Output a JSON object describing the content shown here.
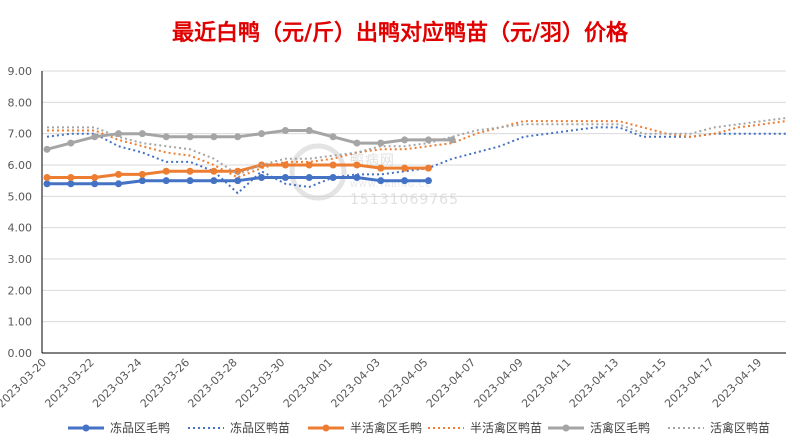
{
  "chart_data": {
    "type": "line",
    "title": "最近白鸭（元/斤）出鸭对应鸭苗（元/羽）价格",
    "ylim": [
      0,
      9
    ],
    "yticks": [
      "0.00",
      "1.00",
      "2.00",
      "3.00",
      "4.00",
      "5.00",
      "6.00",
      "7.00",
      "8.00",
      "9.00"
    ],
    "x": [
      "2023-03-20",
      "2023-03-21",
      "2023-03-22",
      "2023-03-23",
      "2023-03-24",
      "2023-03-25",
      "2023-03-26",
      "2023-03-27",
      "2023-03-28",
      "2023-03-29",
      "2023-03-30",
      "2023-03-31",
      "2023-04-01",
      "2023-04-02",
      "2023-04-03",
      "2023-04-04",
      "2023-04-05",
      "2023-04-06",
      "2023-04-07",
      "2023-04-08",
      "2023-04-09",
      "2023-04-10",
      "2023-04-11",
      "2023-04-12",
      "2023-04-13",
      "2023-04-14",
      "2023-04-15",
      "2023-04-16",
      "2023-04-17",
      "2023-04-18",
      "2023-04-19",
      "2023-04-20"
    ],
    "xticks": [
      "2023-03-20",
      "2023-03-22",
      "2023-03-24",
      "2023-03-26",
      "2023-03-28",
      "2023-03-30",
      "2023-04-01",
      "2023-04-03",
      "2023-04-05",
      "2023-04-07",
      "2023-04-09",
      "2023-04-11",
      "2023-04-13",
      "2023-04-15",
      "2023-04-17",
      "2023-04-19"
    ],
    "legend_position": "bottom",
    "grid": true,
    "series": [
      {
        "name": "冻品区毛鸭",
        "style": "solid",
        "color": "#4472C4",
        "values": [
          5.4,
          5.4,
          5.4,
          5.4,
          5.5,
          5.5,
          5.5,
          5.5,
          5.5,
          5.6,
          5.6,
          5.6,
          5.6,
          5.6,
          5.5,
          5.5,
          5.5,
          null,
          null,
          null,
          null,
          null,
          null,
          null,
          null,
          null,
          null,
          null,
          null,
          null,
          null,
          null
        ]
      },
      {
        "name": "冻品区鸭苗",
        "style": "dotted",
        "color": "#4472C4",
        "values": [
          6.9,
          7.0,
          7.0,
          6.6,
          6.4,
          6.1,
          6.1,
          5.8,
          5.1,
          5.8,
          5.4,
          5.3,
          5.6,
          5.7,
          5.7,
          5.8,
          5.9,
          6.2,
          6.4,
          6.6,
          6.9,
          7.0,
          7.1,
          7.2,
          7.2,
          6.9,
          6.9,
          6.9,
          7.0,
          7.0,
          7.0,
          7.0
        ]
      },
      {
        "name": "半活禽区毛鸭",
        "style": "solid",
        "color": "#ED7D31",
        "values": [
          5.6,
          5.6,
          5.6,
          5.7,
          5.7,
          5.8,
          5.8,
          5.8,
          5.8,
          6.0,
          6.0,
          6.0,
          6.0,
          6.0,
          5.9,
          5.9,
          5.9,
          null,
          null,
          null,
          null,
          null,
          null,
          null,
          null,
          null,
          null,
          null,
          null,
          null,
          null,
          null
        ]
      },
      {
        "name": "半活禽区鸭苗",
        "style": "dotted",
        "color": "#ED7D31",
        "values": [
          7.1,
          7.1,
          7.1,
          6.8,
          6.6,
          6.4,
          6.3,
          6.0,
          5.6,
          5.9,
          6.1,
          6.1,
          6.2,
          6.4,
          6.5,
          6.5,
          6.6,
          6.7,
          7.0,
          7.2,
          7.4,
          7.4,
          7.4,
          7.4,
          7.4,
          7.2,
          7.0,
          6.9,
          7.0,
          7.2,
          7.3,
          7.4
        ]
      },
      {
        "name": "活禽区毛鸭",
        "style": "solid",
        "color": "#A5A5A5",
        "values": [
          6.5,
          6.7,
          6.9,
          7.0,
          7.0,
          6.9,
          6.9,
          6.9,
          6.9,
          7.0,
          7.1,
          7.1,
          6.9,
          6.7,
          6.7,
          6.8,
          6.8,
          6.8,
          null,
          null,
          null,
          null,
          null,
          null,
          null,
          null,
          null,
          null,
          null,
          null,
          null,
          null
        ]
      },
      {
        "name": "活禽区鸭苗",
        "style": "dotted",
        "color": "#A5A5A5",
        "values": [
          7.2,
          7.2,
          7.2,
          6.9,
          6.7,
          6.6,
          6.5,
          6.2,
          5.7,
          6.0,
          6.2,
          6.2,
          6.3,
          6.4,
          6.6,
          6.6,
          6.7,
          6.9,
          7.1,
          7.2,
          7.3,
          7.3,
          7.3,
          7.3,
          7.3,
          7.0,
          7.0,
          7.0,
          7.2,
          7.3,
          7.4,
          7.5
        ]
      }
    ]
  },
  "watermark": {
    "name": "鸭病网",
    "url": "WWW.YABING.CC",
    "phone": "15131069765"
  }
}
